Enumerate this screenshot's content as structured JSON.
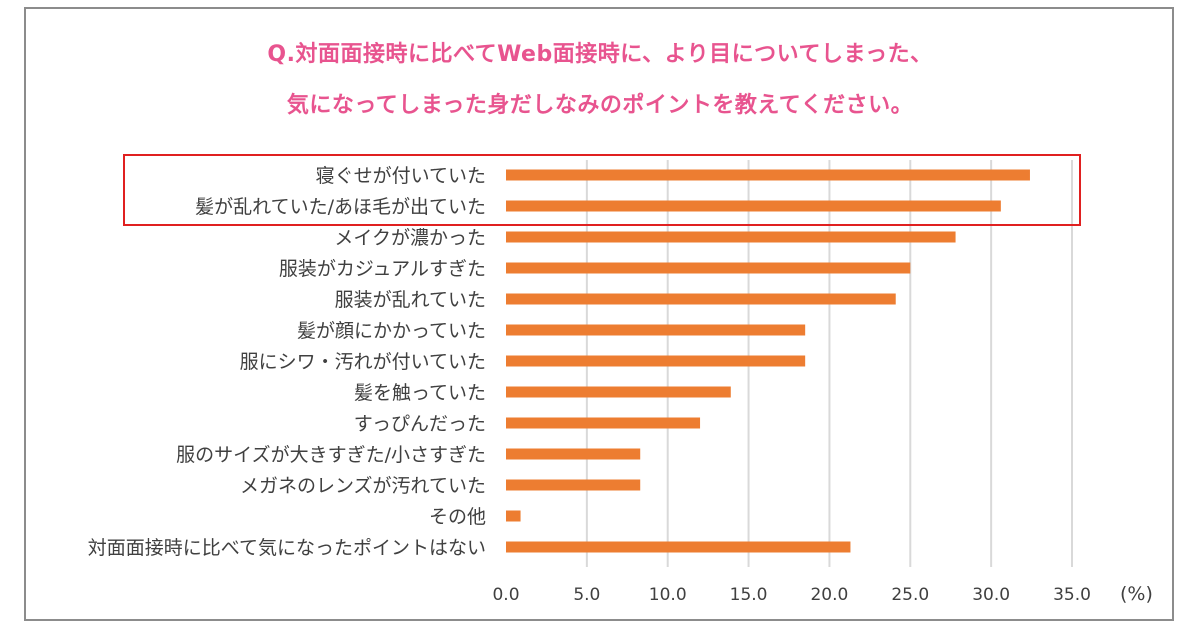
{
  "chart_data": {
    "type": "bar",
    "orientation": "horizontal",
    "title_line1": "Q.対面面接時に比べてWeb面接時に、より目についてしまった、",
    "title_line2": "気になってしまった身だしなみのポイントを教えてください。",
    "categories": [
      "寝ぐせが付いていた",
      "髪が乱れていた/あほ毛が出ていた",
      "メイクが濃かった",
      "服装がカジュアルすぎた",
      "服装が乱れていた",
      "髪が顔にかかっていた",
      "服にシワ・汚れが付いていた",
      "髪を触っていた",
      "すっぴんだった",
      "服のサイズが大きすぎた/小さすぎた",
      "メガネのレンズが汚れていた",
      "その他",
      "対面面接時に比べて気になったポイントはない"
    ],
    "values": [
      32.4,
      30.6,
      27.8,
      25.0,
      24.1,
      18.5,
      18.5,
      13.9,
      12.0,
      8.3,
      8.3,
      0.9,
      21.3
    ],
    "xlim": [
      0,
      35
    ],
    "xticks": [
      "0.0",
      "5.0",
      "10.0",
      "15.0",
      "20.0",
      "25.0",
      "30.0",
      "35.0"
    ],
    "xlabel": "(%)",
    "grid": true,
    "bar_color": "#ed7d31",
    "grid_color": "#d9d9d9",
    "highlight_color": "#e02020",
    "highlight_categories": [
      0,
      1
    ]
  }
}
